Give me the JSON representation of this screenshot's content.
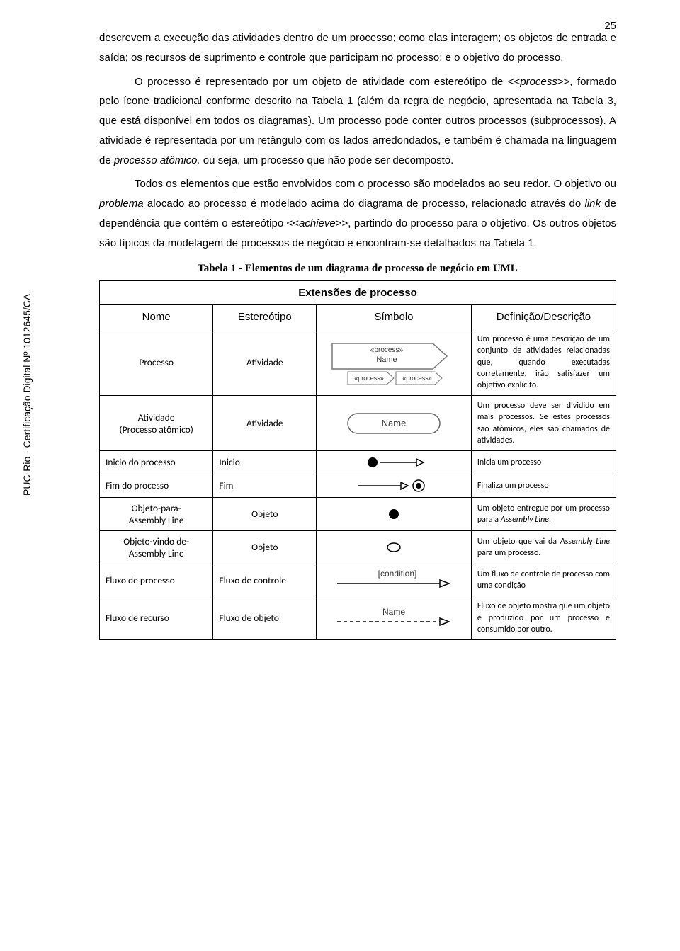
{
  "page_number": "25",
  "vertical_label": "PUC-Rio - Certificação Digital Nº 1012645/CA",
  "paragraphs": {
    "p1": "descrevem a execução das atividades dentro de um processo; como elas interagem; os objetos de entrada e saída; os recursos de suprimento e controle que participam no processo; e o objetivo do processo.",
    "p2a": "O processo é representado por um objeto de atividade com estereótipo de <<",
    "p2b": "process",
    "p2c": ">>, formado pelo ícone tradicional conforme descrito na Tabela 1 (além da regra de negócio, apresentada na Tabela 3, que está disponível em todos os diagramas). Um processo pode conter outros processos (subprocessos). A atividade é representada por um retângulo com os lados arredondados, e também é chamada na linguagem de ",
    "p2d": "processo atômico,",
    "p2e": " ou seja, um processo que não pode ser decomposto.",
    "p3a": "Todos os elementos que estão envolvidos com o processo são modelados ao seu redor. O objetivo ou ",
    "p3b": "problema",
    "p3c": " alocado ao processo é modelado acima do diagrama de processo, relacionado através do ",
    "p3d": "link",
    "p3e": " de dependência que contém o estereótipo <<",
    "p3f": "achieve",
    "p3g": ">>, partindo do processo para o objetivo. Os outros objetos são típicos da modelagem de processos de negócio e encontram-se detalhados na Tabela 1."
  },
  "table_caption": "Tabela 1 - Elementos de um diagrama de processo de negócio em UML",
  "table": {
    "span_header": "Extensões de processo",
    "columns": [
      "Nome",
      "Estereótipo",
      "Símbolo",
      "Definição/Descrição"
    ],
    "col_widths": [
      "22%",
      "20%",
      "30%",
      "28%"
    ],
    "rows": [
      {
        "name": "Processo",
        "stereo": "Atividade",
        "symbol": "process-shape",
        "def": "Um processo é uma descrição de um conjunto de atividades relacionadas que, quando executadas corretamente, irão satisfazer um objetivo explícito.",
        "sym_text": {
          "t1": "«process»",
          "t2": "Name",
          "t3": "«process»",
          "t4": "«process»"
        }
      },
      {
        "name": "Atividade\n(Processo atômico)",
        "stereo": "Atividade",
        "symbol": "activity-shape",
        "def": "Um processo deve ser dividido em mais processos. Se estes processos são atômicos, eles são chamados de atividades.",
        "sym_text": {
          "t1": "Name"
        }
      },
      {
        "name": "Inicio do processo",
        "stereo": "Inicio",
        "symbol": "start-node",
        "def": "Inicia um processo"
      },
      {
        "name": "Fim do processo",
        "stereo": "Fim",
        "symbol": "end-node",
        "def": "Finaliza um processo"
      },
      {
        "name": "Objeto-para-\nAssembly Line",
        "stereo": "Objeto",
        "symbol": "filled-circle",
        "def_html": "Um objeto entregue por um processo para a <i>Assembly Line</i>."
      },
      {
        "name": "Objeto-vindo de-\nAssembly Line",
        "stereo": "Objeto",
        "symbol": "empty-circle",
        "def_html": "Um objeto que vai da <i>Assembly Line</i> para um processo."
      },
      {
        "name": "Fluxo de processo",
        "stereo": "Fluxo de controle",
        "symbol": "control-flow",
        "def": "Um fluxo de controle de processo com uma condição",
        "sym_text": {
          "t1": "[condition]"
        }
      },
      {
        "name": "Fluxo de recurso",
        "stereo": "Fluxo de objeto",
        "symbol": "object-flow",
        "def": "Fluxo de objeto mostra que um objeto é produzido por um processo e consumido por outro.",
        "sym_text": {
          "t1": "Name"
        }
      }
    ]
  },
  "colors": {
    "text": "#000000",
    "border": "#000000",
    "gray": "#888888",
    "light_gray": "#cccccc",
    "bg": "#ffffff"
  }
}
